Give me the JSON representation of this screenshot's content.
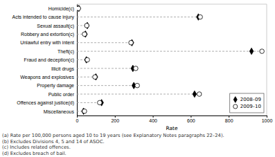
{
  "chart_data": {
    "type": "dot",
    "orientation": "horizontal",
    "categories": [
      "Homicide(c)",
      "Acts intended to cause injury",
      "Sexual assault(c)",
      "Robbery and extortion(c)",
      "Unlawful entry with intent",
      "Theft(c)",
      "Fraud and deception(c)",
      "Illicit drugs",
      "Weapons and explosives",
      "Property damage",
      "Public order",
      "Offences against justice(d)",
      "Miscellaneous"
    ],
    "series": [
      {
        "name": "2008–09",
        "color": "#000000",
        "marker": "diamond",
        "values": [
          10,
          640,
          55,
          45,
          290,
          920,
          50,
          295,
          100,
          300,
          620,
          130,
          35
        ]
      },
      {
        "name": "2009–10",
        "color": "#ffffff",
        "marker": "circle",
        "values": [
          8,
          650,
          52,
          40,
          285,
          975,
          55,
          310,
          95,
          318,
          645,
          120,
          40
        ]
      }
    ],
    "xlabel": "Rate",
    "xlim": [
      0,
      1000
    ],
    "xticks": [
      0,
      200,
      400,
      600,
      800,
      1000
    ],
    "grid": false,
    "legend": "lower right",
    "annotations": [
      "(a) Rate per 100,000 persons aged 10 to 19 years (see Explanatory Notes paragraphs 22–24).",
      "(b) Excludes Divisions 4, 5 and 14 of ASOC.",
      "(c) Includes related offences.",
      "(d) Excludes breach of bail."
    ]
  }
}
